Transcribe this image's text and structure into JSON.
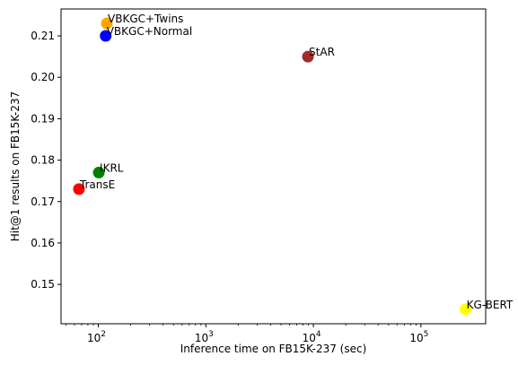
{
  "chart_data": {
    "type": "scatter",
    "title": "",
    "xlabel": "Inference time on FB15K-237 (sec)",
    "ylabel": "Hit@1 results on FB15K-237",
    "xscale": "log",
    "xlim": [
      45,
      400000
    ],
    "ylim": [
      0.1405,
      0.2165
    ],
    "grid": false,
    "legend": "none",
    "xticks": [
      {
        "value": 100,
        "base": "10",
        "exp": "2"
      },
      {
        "value": 1000,
        "base": "10",
        "exp": "3"
      },
      {
        "value": 10000,
        "base": "10",
        "exp": "4"
      },
      {
        "value": 100000,
        "base": "10",
        "exp": "5"
      }
    ],
    "yticks": [
      {
        "value": 0.15,
        "label": "0.15"
      },
      {
        "value": 0.16,
        "label": "0.16"
      },
      {
        "value": 0.17,
        "label": "0.17"
      },
      {
        "value": 0.18,
        "label": "0.18"
      },
      {
        "value": 0.19,
        "label": "0.19"
      },
      {
        "value": 0.2,
        "label": "0.20"
      },
      {
        "value": 0.21,
        "label": "0.21"
      }
    ],
    "points": [
      {
        "label": "VBKGC+Twins",
        "x": 120,
        "y": 0.213,
        "color": "#ffa500"
      },
      {
        "label": "VBKGC+Normal",
        "x": 117,
        "y": 0.21,
        "color": "#0000ff"
      },
      {
        "label": "StAR",
        "x": 8900,
        "y": 0.205,
        "color": "#a52a2a"
      },
      {
        "label": "IKRL",
        "x": 101,
        "y": 0.177,
        "color": "#008000"
      },
      {
        "label": "TransE",
        "x": 66,
        "y": 0.173,
        "color": "#ff0000"
      },
      {
        "label": "KG-BERT",
        "x": 260000,
        "y": 0.144,
        "color": "#ffff00"
      }
    ]
  }
}
